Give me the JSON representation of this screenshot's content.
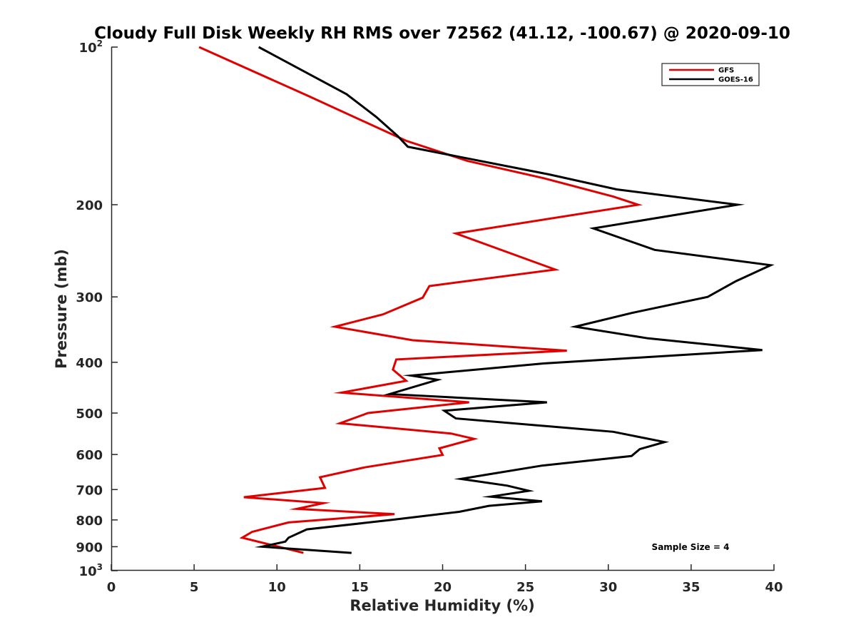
{
  "chart_data": {
    "type": "line",
    "title": "Cloudy Full Disk Weekly RH RMS over 72562 (41.12, -100.67) @ 2020-09-10",
    "xlabel": "Relative Humidity (%)",
    "ylabel": "Pressure (mb)",
    "xlim": [
      0,
      40
    ],
    "ylim": [
      100,
      1000
    ],
    "y_scale": "log",
    "y_reversed": true,
    "x_ticks": [
      "0",
      "5",
      "10",
      "15",
      "20",
      "25",
      "30",
      "35",
      "40"
    ],
    "y_ticks": [
      {
        "value": 100,
        "base": "10",
        "exp": "2"
      },
      {
        "value": 200,
        "label": "200"
      },
      {
        "value": 300,
        "label": "300"
      },
      {
        "value": 400,
        "label": "400"
      },
      {
        "value": 500,
        "label": "500"
      },
      {
        "value": 600,
        "label": "600"
      },
      {
        "value": 700,
        "label": "700"
      },
      {
        "value": 800,
        "label": "800"
      },
      {
        "value": 900,
        "label": "900"
      },
      {
        "value": 1000,
        "base": "10",
        "exp": "3"
      }
    ],
    "grid": false,
    "legend_position": "top-right",
    "annotation": "Sample Size = 4",
    "series": [
      {
        "name": "GFS",
        "color": "#e00000",
        "points": [
          [
            5.3,
            100
          ],
          [
            11.9,
            124
          ],
          [
            17.8,
            151
          ],
          [
            21.5,
            165
          ],
          [
            26.1,
            178
          ],
          [
            30.3,
            193
          ],
          [
            31.8,
            200
          ],
          [
            20.8,
            227
          ],
          [
            26.8,
            266
          ],
          [
            19.2,
            286
          ],
          [
            18.8,
            301
          ],
          [
            16.4,
            324
          ],
          [
            13.5,
            342
          ],
          [
            18.2,
            363
          ],
          [
            27.5,
            380
          ],
          [
            17.2,
            395
          ],
          [
            17.0,
            413
          ],
          [
            17.8,
            434
          ],
          [
            13.9,
            457
          ],
          [
            21.6,
            477
          ],
          [
            15.5,
            500
          ],
          [
            13.8,
            523
          ],
          [
            20.5,
            547
          ],
          [
            21.9,
            560
          ],
          [
            19.8,
            584
          ],
          [
            20.0,
            601
          ],
          [
            15.3,
            635
          ],
          [
            12.6,
            663
          ],
          [
            12.9,
            695
          ],
          [
            8.0,
            724
          ],
          [
            12.8,
            743
          ],
          [
            11.2,
            762
          ],
          [
            17.1,
            780
          ],
          [
            10.7,
            809
          ],
          [
            8.5,
            843
          ],
          [
            7.9,
            865
          ],
          [
            11.6,
            925
          ]
        ]
      },
      {
        "name": "GOES-16",
        "color": "#000000",
        "points": [
          [
            8.9,
            100
          ],
          [
            14.2,
            123
          ],
          [
            16.0,
            136
          ],
          [
            17.3,
            148
          ],
          [
            17.9,
            155
          ],
          [
            26.4,
            175
          ],
          [
            30.5,
            187
          ],
          [
            37.8,
            200
          ],
          [
            29.1,
            222
          ],
          [
            32.8,
            244
          ],
          [
            39.8,
            261
          ],
          [
            37.7,
            280
          ],
          [
            36.0,
            300
          ],
          [
            31.4,
            322
          ],
          [
            28.0,
            342
          ],
          [
            32.4,
            360
          ],
          [
            39.3,
            379
          ],
          [
            26.1,
            402
          ],
          [
            18.1,
            424
          ],
          [
            19.7,
            432
          ],
          [
            16.8,
            460
          ],
          [
            26.3,
            477
          ],
          [
            20.1,
            495
          ],
          [
            20.8,
            512
          ],
          [
            30.3,
            543
          ],
          [
            33.4,
            568
          ],
          [
            31.9,
            586
          ],
          [
            31.4,
            604
          ],
          [
            26.0,
            630
          ],
          [
            22.6,
            656
          ],
          [
            21.1,
            668
          ],
          [
            23.9,
            688
          ],
          [
            25.2,
            704
          ],
          [
            22.9,
            722
          ],
          [
            26.0,
            737
          ],
          [
            22.8,
            752
          ],
          [
            21.0,
            772
          ],
          [
            16.9,
            800
          ],
          [
            11.8,
            834
          ],
          [
            10.7,
            865
          ],
          [
            10.5,
            880
          ],
          [
            9.1,
            900
          ],
          [
            14.5,
            925
          ]
        ]
      }
    ]
  }
}
